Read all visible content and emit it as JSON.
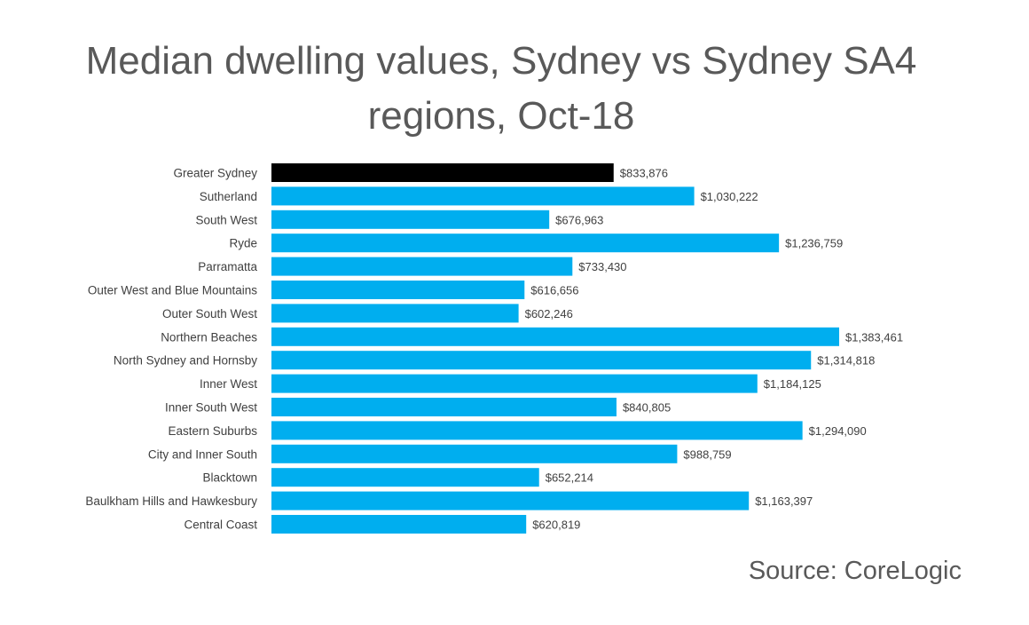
{
  "chart_data": {
    "type": "bar",
    "orientation": "horizontal",
    "title_lines": [
      "Median dwelling values, Sydney vs Sydney SA4",
      "regions, Oct-18"
    ],
    "xlabel": "",
    "ylabel": "",
    "xlim": [
      0,
      1400000
    ],
    "grid": false,
    "legend": "none",
    "colors": {
      "highlight": "#000000",
      "default": "#00aeef"
    },
    "categories": [
      "Greater Sydney",
      "Sutherland",
      "South West",
      "Ryde",
      "Parramatta",
      "Outer West and Blue Mountains",
      "Outer South West",
      "Northern Beaches",
      "North Sydney and Hornsby",
      "Inner West",
      "Inner South West",
      "Eastern Suburbs",
      "City and Inner South",
      "Blacktown",
      "Baulkham Hills and Hawkesbury",
      "Central Coast"
    ],
    "values": [
      833876,
      1030222,
      676963,
      1236759,
      733430,
      616656,
      602246,
      1383461,
      1314818,
      1184125,
      840805,
      1294090,
      988759,
      652214,
      1163397,
      620819
    ],
    "value_labels": [
      "$833,876",
      "$1,030,222",
      "$676,963",
      "$1,236,759",
      "$733,430",
      "$616,656",
      "$602,246",
      "$1,383,461",
      "$1,314,818",
      "$1,184,125",
      "$840,805",
      "$1,294,090",
      "$988,759",
      "$652,214",
      "$1,163,397",
      "$620,819"
    ],
    "highlight_category": "Greater Sydney"
  },
  "source": "Source: CoreLogic"
}
